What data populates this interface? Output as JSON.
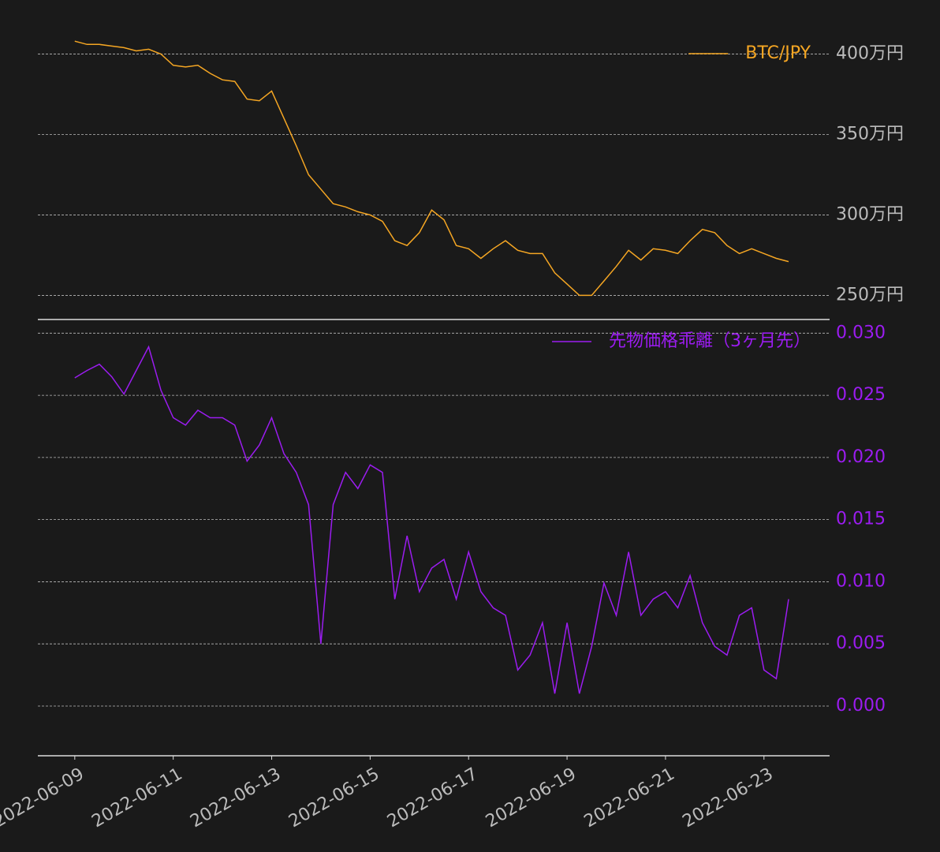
{
  "chart_data": [
    {
      "type": "line",
      "x": [
        "2022-06-09 00:00",
        "2022-06-09 06:00",
        "2022-06-09 12:00",
        "2022-06-09 18:00",
        "2022-06-10 00:00",
        "2022-06-10 06:00",
        "2022-06-10 12:00",
        "2022-06-10 18:00",
        "2022-06-11 00:00",
        "2022-06-11 06:00",
        "2022-06-11 12:00",
        "2022-06-11 18:00",
        "2022-06-12 00:00",
        "2022-06-12 06:00",
        "2022-06-12 12:00",
        "2022-06-12 18:00",
        "2022-06-13 00:00",
        "2022-06-13 06:00",
        "2022-06-13 12:00",
        "2022-06-13 18:00",
        "2022-06-14 00:00",
        "2022-06-14 06:00",
        "2022-06-14 12:00",
        "2022-06-14 18:00",
        "2022-06-15 00:00",
        "2022-06-15 06:00",
        "2022-06-15 12:00",
        "2022-06-15 18:00",
        "2022-06-16 00:00",
        "2022-06-16 06:00",
        "2022-06-16 12:00",
        "2022-06-16 18:00",
        "2022-06-17 00:00",
        "2022-06-17 06:00",
        "2022-06-17 12:00",
        "2022-06-17 18:00",
        "2022-06-18 00:00",
        "2022-06-18 06:00",
        "2022-06-18 12:00",
        "2022-06-18 18:00",
        "2022-06-19 00:00",
        "2022-06-19 06:00",
        "2022-06-19 12:00",
        "2022-06-19 18:00",
        "2022-06-20 00:00",
        "2022-06-20 06:00",
        "2022-06-20 12:00",
        "2022-06-20 18:00",
        "2022-06-21 00:00",
        "2022-06-21 06:00",
        "2022-06-21 12:00",
        "2022-06-21 18:00",
        "2022-06-22 00:00",
        "2022-06-22 06:00",
        "2022-06-22 12:00",
        "2022-06-22 18:00",
        "2022-06-23 00:00",
        "2022-06-23 06:00",
        "2022-06-23 12:00"
      ],
      "xlim": [
        "2022-06-08 06:00",
        "2022-06-24 08:00"
      ],
      "series": [
        {
          "name": "BTC/JPY",
          "color": "#f5a623",
          "values": [
            408,
            406,
            406,
            405,
            404,
            402,
            403,
            400,
            393,
            392,
            393,
            388,
            384,
            383,
            372,
            371,
            377,
            360,
            343,
            325,
            316,
            307,
            305,
            302,
            300,
            296,
            284,
            281,
            289,
            303,
            297,
            281,
            279,
            273,
            279,
            284,
            278,
            276,
            276,
            264,
            257,
            250,
            250,
            259,
            268,
            278,
            272,
            279,
            278,
            276,
            284,
            291,
            289,
            281,
            276,
            279,
            276,
            273,
            271
          ]
        }
      ],
      "ylim": [
        235,
        414
      ],
      "yticks": [
        {
          "value": 250,
          "label": "250万円"
        },
        {
          "value": 300,
          "label": "300万円"
        },
        {
          "value": 350,
          "label": "350万円"
        },
        {
          "value": 400,
          "label": "400万円"
        }
      ],
      "tick_color": "#bbbbbb",
      "grid": true,
      "legend": "upper right"
    },
    {
      "type": "line",
      "x": [
        "2022-06-09 00:00",
        "2022-06-09 06:00",
        "2022-06-09 12:00",
        "2022-06-09 18:00",
        "2022-06-10 00:00",
        "2022-06-10 06:00",
        "2022-06-10 12:00",
        "2022-06-10 18:00",
        "2022-06-11 00:00",
        "2022-06-11 06:00",
        "2022-06-11 12:00",
        "2022-06-11 18:00",
        "2022-06-12 00:00",
        "2022-06-12 06:00",
        "2022-06-12 12:00",
        "2022-06-12 18:00",
        "2022-06-13 00:00",
        "2022-06-13 06:00",
        "2022-06-13 12:00",
        "2022-06-13 18:00",
        "2022-06-14 00:00",
        "2022-06-14 06:00",
        "2022-06-14 12:00",
        "2022-06-14 18:00",
        "2022-06-15 00:00",
        "2022-06-15 06:00",
        "2022-06-15 12:00",
        "2022-06-15 18:00",
        "2022-06-16 00:00",
        "2022-06-16 06:00",
        "2022-06-16 12:00",
        "2022-06-16 18:00",
        "2022-06-17 00:00",
        "2022-06-17 06:00",
        "2022-06-17 12:00",
        "2022-06-17 18:00",
        "2022-06-18 00:00",
        "2022-06-18 06:00",
        "2022-06-18 12:00",
        "2022-06-18 18:00",
        "2022-06-19 00:00",
        "2022-06-19 06:00",
        "2022-06-19 12:00",
        "2022-06-19 18:00",
        "2022-06-20 00:00",
        "2022-06-20 06:00",
        "2022-06-20 12:00",
        "2022-06-20 18:00",
        "2022-06-21 00:00",
        "2022-06-21 06:00",
        "2022-06-21 12:00",
        "2022-06-21 18:00",
        "2022-06-22 00:00",
        "2022-06-22 06:00",
        "2022-06-22 12:00",
        "2022-06-22 18:00",
        "2022-06-23 00:00",
        "2022-06-23 06:00",
        "2022-06-23 12:00"
      ],
      "xlim": [
        "2022-06-08 06:00",
        "2022-06-24 08:00"
      ],
      "xticks": [
        "2022-06-09",
        "2022-06-11",
        "2022-06-13",
        "2022-06-15",
        "2022-06-17",
        "2022-06-19",
        "2022-06-21",
        "2022-06-23"
      ],
      "series": [
        {
          "name": "先物価格乖離（3ヶ月先）",
          "color": "#9b1cf0",
          "values": [
            0.0264,
            0.027,
            0.0275,
            0.0265,
            0.0251,
            0.027,
            0.0289,
            0.0254,
            0.0232,
            0.0226,
            0.0238,
            0.0232,
            0.0232,
            0.0226,
            0.0197,
            0.021,
            0.0232,
            0.0203,
            0.0188,
            0.0162,
            0.005,
            0.0162,
            0.0188,
            0.0175,
            0.0194,
            0.0188,
            0.0086,
            0.0137,
            0.0092,
            0.0111,
            0.0118,
            0.0086,
            0.0124,
            0.0092,
            0.0079,
            0.0073,
            0.0029,
            0.0041,
            0.0067,
            0.001,
            0.0067,
            0.001,
            0.0048,
            0.0099,
            0.0073,
            0.0124,
            0.0073,
            0.0086,
            0.0092,
            0.0079,
            0.0105,
            0.0067,
            0.0048,
            0.0041,
            0.0073,
            0.0079,
            0.0029,
            0.0022,
            0.0086
          ]
        }
      ],
      "ylim": [
        -0.004,
        0.0311
      ],
      "yticks": [
        {
          "value": 0,
          "label": "0.000"
        },
        0.005,
        {
          "value": 0.01,
          "label": "0.010"
        },
        0.015,
        {
          "value": 0.02,
          "label": "0.020"
        },
        0.025,
        {
          "value": 0.03,
          "label": "0.030"
        }
      ],
      "tick_color": "#9b1cf0",
      "grid": true,
      "legend": "upper right"
    }
  ]
}
